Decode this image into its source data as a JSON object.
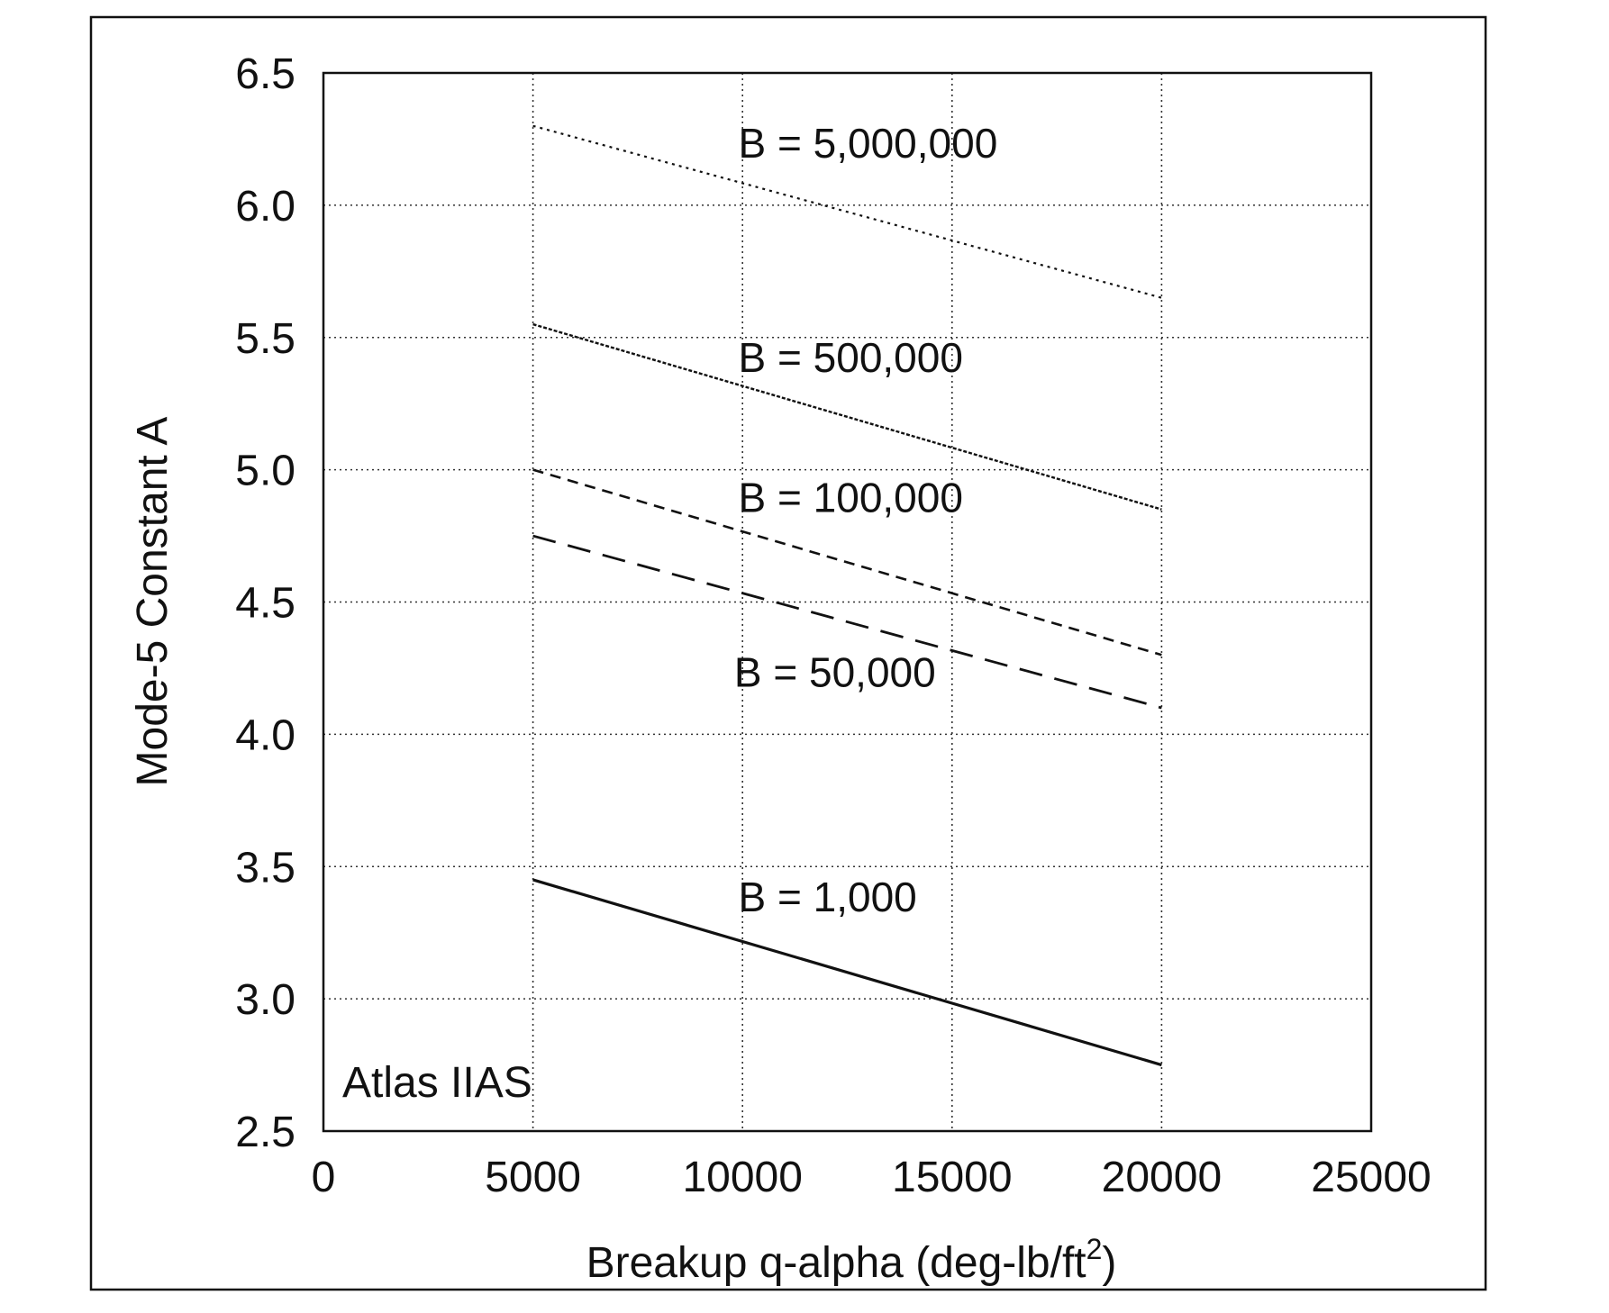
{
  "chart_data": {
    "type": "line",
    "title": "",
    "xlabel": "Breakup q-alpha (deg-lb/ft",
    "xlabel_superscript": "2",
    "xlabel_close": ")",
    "ylabel": "Mode-5 Constant A",
    "xlim": [
      0,
      25000
    ],
    "ylim": [
      2.5,
      6.5
    ],
    "x_ticks": [
      0,
      5000,
      10000,
      15000,
      20000,
      25000
    ],
    "x_tick_labels": [
      "0",
      "5000",
      "10000",
      "15000",
      "20000",
      "25000"
    ],
    "y_ticks": [
      2.5,
      3.0,
      3.5,
      4.0,
      4.5,
      5.0,
      5.5,
      6.0,
      6.5
    ],
    "y_tick_labels": [
      "2.5",
      "3.0",
      "3.5",
      "4.0",
      "4.5",
      "5.0",
      "5.5",
      "6.0",
      "6.5"
    ],
    "grid": true,
    "annotation": "Atlas IIAS",
    "series": [
      {
        "name": "B = 5,000,000",
        "style": "dotted",
        "x": [
          5000,
          20000
        ],
        "y": [
          6.3,
          5.65
        ]
      },
      {
        "name": "B = 500,000",
        "style": "dense-dash",
        "x": [
          5000,
          20000
        ],
        "y": [
          5.55,
          4.85
        ]
      },
      {
        "name": "B = 100,000",
        "style": "short-dash",
        "x": [
          5000,
          20000
        ],
        "y": [
          5.0,
          4.3
        ]
      },
      {
        "name": "B = 50,000",
        "style": "long-dash",
        "x": [
          5000,
          20000
        ],
        "y": [
          4.75,
          4.1
        ]
      },
      {
        "name": "B = 1,000",
        "style": "solid",
        "x": [
          5000,
          20000
        ],
        "y": [
          3.45,
          2.75
        ]
      }
    ],
    "series_labels": [
      {
        "text": "B = 5,000,000",
        "x": 9900,
        "y": 6.18
      },
      {
        "text": "B = 500,000",
        "x": 9900,
        "y": 5.37
      },
      {
        "text": "B = 100,000",
        "x": 9900,
        "y": 4.84
      },
      {
        "text": "B = 50,000",
        "x": 9800,
        "y": 4.18
      },
      {
        "text": "B = 1,000",
        "x": 9900,
        "y": 3.33
      }
    ]
  }
}
